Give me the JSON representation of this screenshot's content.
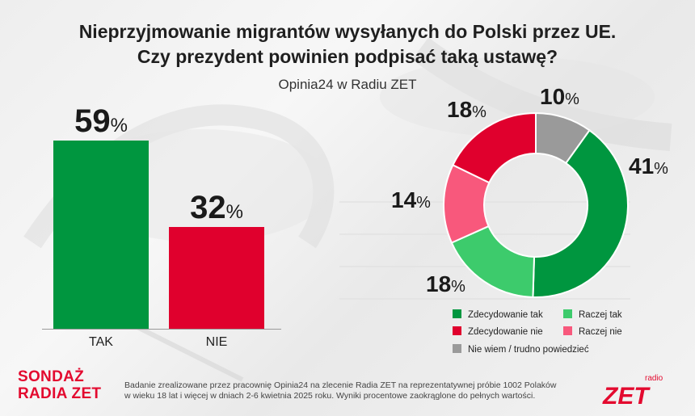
{
  "title_line1": "Nieprzyjmowanie migrantów wysyłanych do Polski przez UE.",
  "title_line2": "Czy prezydent powinien podpisać taką ustawę?",
  "subtitle": "Opinia24 w Radiu ZET",
  "colors": {
    "tak": "#00963f",
    "nie": "#e0002d",
    "zdecydowanie_tak": "#00963f",
    "raczej_tak": "#3dcb6c",
    "zdecydowanie_nie": "#e0002d",
    "raczej_nie": "#f8587c",
    "nie_wiem": "#9a9a9a",
    "brand": "#e30a2f"
  },
  "chart_data": [
    {
      "type": "bar",
      "categories": [
        "TAK",
        "NIE"
      ],
      "values": [
        59,
        32
      ],
      "value_labels": [
        "59",
        "32"
      ],
      "unit": "%",
      "ylim": [
        0,
        59
      ]
    },
    {
      "type": "pie",
      "style": "donut",
      "start": "top",
      "direction": "clockwise",
      "slices": [
        {
          "name": "Nie wiem / trudno powiedzieć",
          "value": 10,
          "label": "10"
        },
        {
          "name": "Zdecydowanie tak",
          "value": 41,
          "label": "41"
        },
        {
          "name": "Raczej tak",
          "value": 18,
          "label": "18"
        },
        {
          "name": "Raczej nie",
          "value": 14,
          "label": "14"
        },
        {
          "name": "Zdecydowanie nie",
          "value": 18,
          "label": "18"
        }
      ],
      "unit": "%",
      "legend_placement": "bottom"
    }
  ],
  "legend": {
    "zdecydowanie_tak": "Zdecydowanie tak",
    "raczej_tak": "Raczej tak",
    "zdecydowanie_nie": "Zdecydowanie nie",
    "raczej_nie": "Raczej nie",
    "nie_wiem": "Nie wiem / trudno powiedzieć"
  },
  "logo": {
    "line1": "SONDAŻ",
    "line2": "RADIA ZET"
  },
  "footnote_line1": "Badanie zrealizowane przez pracownię Opinia24 na zlecenie Radia ZET na reprezentatywnej próbie 1002 Polaków",
  "footnote_line2": "w wieku 18 lat i więcej w dniach 2-6 kwietnia 2025 roku. Wyniki procentowe zaokrąglone do pełnych wartości.",
  "zet_logo": {
    "small": "radio",
    "big": "ZET"
  }
}
